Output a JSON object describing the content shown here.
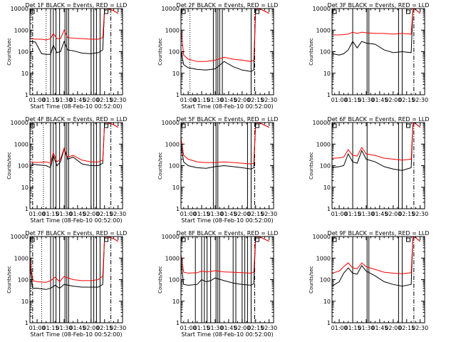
{
  "chart_data": {
    "type": "line",
    "y_scale": "log",
    "ylim": [
      1,
      10000
    ],
    "y_ticks": [
      1,
      10,
      100,
      1000,
      10000
    ],
    "y_tick_labels": [
      "1",
      "10",
      "100",
      "1000",
      "10000"
    ],
    "xlim": [
      "00:52",
      "02:35"
    ],
    "x_ticks": [
      "01:00",
      "01:15",
      "01:30",
      "01:45",
      "02:00",
      "02:15",
      "02:30"
    ],
    "grid": false,
    "colors": {
      "events": "#000000",
      "lld": "#ff0000"
    },
    "panels": [
      {
        "title": "Det  1F BLACK = Events, RED = LLD",
        "ylabel": "Counts/sec",
        "xlabel": "Start Time (08-Feb-10 00:52:00)",
        "markers": {
          "solid": [
            "01:15",
            "01:18",
            "01:21",
            "01:25",
            "01:31",
            "01:33",
            "01:35",
            "02:00",
            "02:03",
            "02:06",
            "02:10"
          ],
          "dotted": [
            "01:10"
          ],
          "dashdot": [
            "00:55",
            "02:22"
          ]
        },
        "series": [
          {
            "name": "Events",
            "x": [
              "00:52",
              "00:58",
              "01:05",
              "01:10",
              "01:15",
              "01:18",
              "01:22",
              "01:26",
              "01:30",
              "01:34",
              "01:40",
              "01:50",
              "02:00",
              "02:08",
              "02:13",
              "02:15",
              "02:17",
              "02:20",
              "02:25",
              "02:30"
            ],
            "y": [
              300,
              280,
              80,
              75,
              75,
              200,
              90,
              100,
              300,
              120,
              110,
              85,
              80,
              90,
              120,
              10000,
              10000,
              9500,
              8000,
              6000
            ]
          },
          {
            "name": "LLD",
            "x": [
              "00:52",
              "00:58",
              "01:05",
              "01:10",
              "01:15",
              "01:18",
              "01:22",
              "01:26",
              "01:30",
              "01:34",
              "01:40",
              "01:50",
              "02:00",
              "02:08",
              "02:13",
              "02:15",
              "02:17",
              "02:20",
              "02:25",
              "02:30"
            ],
            "y": [
              400,
              380,
              380,
              350,
              400,
              700,
              400,
              400,
              1000,
              450,
              420,
              400,
              380,
              380,
              450,
              10000,
              10000,
              9500,
              8000,
              6000
            ]
          }
        ]
      },
      {
        "title": "Det  2F BLACK = Events, RED = LLD",
        "ylabel": "Counts/sec",
        "xlabel": "Start Time (08-Feb-10 00:52:00)",
        "markers": {
          "solid": [
            "01:28",
            "01:31",
            "01:33",
            "01:35",
            "01:38",
            "02:10"
          ],
          "dotted": [
            "01:02"
          ],
          "dashdot": [
            "02:14"
          ]
        },
        "series": [
          {
            "name": "Events",
            "x": [
              "00:52",
              "00:55",
              "01:00",
              "01:10",
              "01:20",
              "01:30",
              "01:40",
              "01:50",
              "02:00",
              "02:10",
              "02:13",
              "02:15",
              "02:20",
              "02:30"
            ],
            "y": [
              100,
              25,
              18,
              15,
              14,
              16,
              35,
              20,
              14,
              12,
              14,
              10000,
              9500,
              6000
            ]
          },
          {
            "name": "LLD",
            "x": [
              "00:52",
              "00:55",
              "01:00",
              "01:10",
              "01:20",
              "01:30",
              "01:40",
              "01:50",
              "02:00",
              "02:10",
              "02:13",
              "02:15",
              "02:20",
              "02:30"
            ],
            "y": [
              1000,
              70,
              45,
              35,
              35,
              40,
              55,
              45,
              40,
              35,
              40,
              10000,
              9500,
              6000
            ]
          }
        ]
      },
      {
        "title": "Det  3F BLACK = Events, RED = LLD",
        "ylabel": "Counts/sec",
        "xlabel": "",
        "markers": {
          "solid": [
            "01:15",
            "01:31",
            "01:33",
            "02:06",
            "02:10"
          ],
          "dotted": [],
          "dashdot": [
            "02:23"
          ]
        },
        "series": [
          {
            "name": "Events",
            "x": [
              "00:52",
              "01:00",
              "01:05",
              "01:10",
              "01:15",
              "01:20",
              "01:25",
              "01:30",
              "01:40",
              "01:50",
              "02:00",
              "02:10",
              "02:20",
              "02:22",
              "02:25",
              "02:30"
            ],
            "y": [
              80,
              70,
              80,
              120,
              300,
              150,
              300,
              250,
              220,
              120,
              90,
              100,
              90,
              10000,
              9000,
              6000
            ]
          },
          {
            "name": "LLD",
            "x": [
              "00:52",
              "01:00",
              "01:05",
              "01:10",
              "01:15",
              "01:20",
              "01:25",
              "01:30",
              "01:40",
              "01:50",
              "02:00",
              "02:10",
              "02:20",
              "02:22",
              "02:25",
              "02:30"
            ],
            "y": [
              600,
              600,
              620,
              650,
              800,
              700,
              800,
              750,
              700,
              700,
              650,
              700,
              650,
              10000,
              9000,
              6000
            ]
          }
        ]
      },
      {
        "title": "Det  4F BLACK = Events, RED = LLD",
        "ylabel": "Counts/sec",
        "xlabel": "Start Time (08-Feb-10 00:52:00)",
        "markers": {
          "solid": [
            "01:15",
            "01:18",
            "01:21",
            "01:25",
            "01:31",
            "01:33",
            "01:35",
            "02:00",
            "02:03",
            "02:06",
            "02:10"
          ],
          "dotted": [
            "01:07"
          ],
          "dashdot": [
            "00:55",
            "02:22"
          ]
        },
        "series": [
          {
            "name": "Events",
            "x": [
              "00:52",
              "01:00",
              "01:10",
              "01:15",
              "01:18",
              "01:22",
              "01:26",
              "01:30",
              "01:34",
              "01:40",
              "01:50",
              "02:00",
              "02:08",
              "02:13",
              "02:15",
              "02:20",
              "02:25",
              "02:30"
            ],
            "y": [
              120,
              110,
              100,
              80,
              300,
              100,
              150,
              600,
              200,
              250,
              120,
              100,
              100,
              130,
              10000,
              9500,
              8000,
              6000
            ]
          },
          {
            "name": "LLD",
            "x": [
              "00:52",
              "01:00",
              "01:10",
              "01:15",
              "01:18",
              "01:22",
              "01:26",
              "01:30",
              "01:34",
              "01:40",
              "01:50",
              "02:00",
              "02:08",
              "02:13",
              "02:15",
              "02:20",
              "02:25",
              "02:30"
            ],
            "y": [
              150,
              140,
              150,
              130,
              400,
              150,
              200,
              650,
              250,
              300,
              180,
              150,
              150,
              180,
              10000,
              9500,
              8000,
              6000
            ]
          }
        ]
      },
      {
        "title": "Det  5F BLACK = Events, RED = LLD",
        "ylabel": "Counts/sec",
        "xlabel": "Start Time (08-Feb-10 00:52:00)",
        "markers": {
          "solid": [
            "01:28",
            "01:31",
            "01:33",
            "02:06",
            "02:10"
          ],
          "dotted": [],
          "dashdot": [
            "02:14"
          ]
        },
        "series": [
          {
            "name": "Events",
            "x": [
              "00:52",
              "00:55",
              "01:00",
              "01:10",
              "01:20",
              "01:30",
              "01:40",
              "01:50",
              "02:00",
              "02:10",
              "02:13",
              "02:15",
              "02:20",
              "02:30"
            ],
            "y": [
              900,
              150,
              100,
              80,
              75,
              90,
              100,
              90,
              80,
              70,
              80,
              10000,
              9500,
              6000
            ]
          },
          {
            "name": "LLD",
            "x": [
              "00:52",
              "00:55",
              "01:00",
              "01:10",
              "01:20",
              "01:30",
              "01:40",
              "01:50",
              "02:00",
              "02:10",
              "02:13",
              "02:15",
              "02:20",
              "02:30"
            ],
            "y": [
              2000,
              300,
              200,
              150,
              140,
              140,
              150,
              140,
              130,
              120,
              130,
              10000,
              9500,
              6000
            ]
          }
        ]
      },
      {
        "title": "Det  6F BLACK = Events, RED = LLD",
        "ylabel": "Counts/sec",
        "xlabel": "",
        "markers": {
          "solid": [
            "01:15",
            "01:31",
            "02:06",
            "02:10"
          ],
          "dotted": [],
          "dashdot": [
            "02:23"
          ]
        },
        "series": [
          {
            "name": "Events",
            "x": [
              "00:52",
              "01:00",
              "01:05",
              "01:10",
              "01:15",
              "01:20",
              "01:25",
              "01:30",
              "01:40",
              "01:50",
              "02:00",
              "02:10",
              "02:20",
              "02:22",
              "02:25",
              "02:30"
            ],
            "y": [
              80,
              90,
              100,
              350,
              150,
              130,
              500,
              200,
              150,
              90,
              70,
              60,
              80,
              10000,
              9000,
              6000
            ]
          },
          {
            "name": "LLD",
            "x": [
              "00:52",
              "01:00",
              "01:05",
              "01:10",
              "01:15",
              "01:20",
              "01:25",
              "01:30",
              "01:40",
              "01:50",
              "02:00",
              "02:10",
              "02:20",
              "02:22",
              "02:25",
              "02:30"
            ],
            "y": [
              220,
              230,
              250,
              550,
              300,
              280,
              700,
              350,
              300,
              220,
              200,
              180,
              200,
              10000,
              9000,
              6000
            ]
          }
        ]
      },
      {
        "title": "Det  7F BLACK = Events, RED = LLD",
        "ylabel": "Counts/sec",
        "xlabel": "Start Time (08-Feb-10 00:52:00)",
        "markers": {
          "solid": [
            "01:15",
            "01:18",
            "01:21",
            "01:25",
            "01:31",
            "01:33",
            "01:35",
            "02:00",
            "02:03",
            "02:06",
            "02:10"
          ],
          "dotted": [
            "01:05"
          ],
          "dashdot": [
            "00:55",
            "02:22"
          ]
        },
        "series": [
          {
            "name": "Events",
            "x": [
              "00:52",
              "00:55",
              "01:00",
              "01:10",
              "01:15",
              "01:20",
              "01:25",
              "01:30",
              "01:40",
              "01:50",
              "02:00",
              "02:08",
              "02:13",
              "02:15",
              "02:20",
              "02:25",
              "02:30"
            ],
            "y": [
              500,
              40,
              40,
              35,
              40,
              55,
              40,
              60,
              50,
              45,
              45,
              45,
              60,
              10000,
              9500,
              8000,
              6000
            ]
          },
          {
            "name": "LLD",
            "x": [
              "00:52",
              "00:55",
              "01:00",
              "01:10",
              "01:15",
              "01:20",
              "01:25",
              "01:30",
              "01:40",
              "01:50",
              "02:00",
              "02:08",
              "02:13",
              "02:15",
              "02:20",
              "02:25",
              "02:30"
            ],
            "y": [
              1200,
              90,
              80,
              75,
              90,
              130,
              80,
              140,
              100,
              90,
              90,
              100,
              150,
              10000,
              9500,
              8000,
              6000
            ]
          }
        ]
      },
      {
        "title": "Det  8F BLACK = Events, RED = LLD",
        "ylabel": "Counts/sec",
        "xlabel": "Start Time (08-Feb-10 00:52:00)",
        "markers": {
          "solid": [
            "01:08",
            "01:15",
            "01:18",
            "01:21",
            "01:25",
            "01:31",
            "01:33",
            "01:35",
            "01:50",
            "01:53",
            "02:00",
            "02:03",
            "02:06",
            "02:10"
          ],
          "dotted": [],
          "dashdot": [
            "02:14"
          ]
        },
        "series": [
          {
            "name": "Events",
            "x": [
              "00:52",
              "00:55",
              "01:00",
              "01:10",
              "01:15",
              "01:20",
              "01:25",
              "01:30",
              "01:40",
              "01:50",
              "02:00",
              "02:10",
              "02:13",
              "02:15",
              "02:20",
              "02:30"
            ],
            "y": [
              700,
              60,
              55,
              60,
              100,
              80,
              90,
              120,
              90,
              70,
              60,
              55,
              65,
              10000,
              9500,
              6000
            ]
          },
          {
            "name": "LLD",
            "x": [
              "00:52",
              "00:55",
              "01:00",
              "01:10",
              "01:15",
              "01:20",
              "01:25",
              "01:30",
              "01:40",
              "01:50",
              "02:00",
              "02:10",
              "02:13",
              "02:15",
              "02:20",
              "02:30"
            ],
            "y": [
              1500,
              220,
              200,
              210,
              250,
              230,
              240,
              260,
              230,
              220,
              210,
              200,
              220,
              10000,
              9500,
              6000
            ]
          }
        ]
      },
      {
        "title": "Det  9F BLACK = Events, RED = LLD",
        "ylabel": "Counts/sec",
        "xlabel": "",
        "markers": {
          "solid": [
            "01:15",
            "01:31",
            "01:33",
            "02:06",
            "02:10"
          ],
          "dotted": [],
          "dashdot": [
            "02:23"
          ]
        },
        "series": [
          {
            "name": "Events",
            "x": [
              "00:52",
              "01:00",
              "01:05",
              "01:10",
              "01:15",
              "01:20",
              "01:25",
              "01:30",
              "01:40",
              "01:50",
              "02:00",
              "02:10",
              "02:20",
              "02:22",
              "02:25",
              "02:30"
            ],
            "y": [
              50,
              80,
              200,
              350,
              200,
              180,
              450,
              250,
              150,
              80,
              60,
              50,
              60,
              10000,
              9000,
              6000
            ]
          },
          {
            "name": "LLD",
            "x": [
              "00:52",
              "01:00",
              "01:05",
              "01:10",
              "01:15",
              "01:20",
              "01:25",
              "01:30",
              "01:40",
              "01:50",
              "02:00",
              "02:10",
              "02:20",
              "02:22",
              "02:25",
              "02:30"
            ],
            "y": [
              200,
              250,
              400,
              600,
              350,
              320,
              600,
              400,
              300,
              220,
              200,
              190,
              210,
              10000,
              9000,
              6000
            ]
          }
        ]
      }
    ]
  }
}
